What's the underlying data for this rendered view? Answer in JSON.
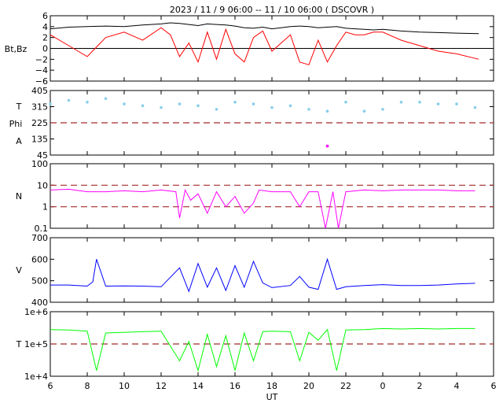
{
  "title": "2023 / 11 /  9   06:00  --  11 / 10   06:00  ( DSCOVR )",
  "xlabel": "UT",
  "x_ticks": [
    "6",
    "8",
    "10",
    "12",
    "14",
    "16",
    "18",
    "20",
    "22",
    "0",
    "2",
    "4",
    "6"
  ],
  "colors": {
    "bt": "#000000",
    "bz": "#ff0000",
    "temperature": "#87ceeb",
    "phi": "#ff00ff",
    "phi_gray": "#b8b8b8",
    "density": "#ff00ff",
    "speed": "#0000ff",
    "temp": "#00ff00",
    "ref_dashed": "#a52a2a"
  },
  "chart_data": [
    {
      "type": "line",
      "panel": "magnetic field",
      "ylabel": "Bt,Bz",
      "ylim": [
        -6,
        6
      ],
      "y_ticks": [
        "6",
        "4",
        "2",
        "0",
        "−2",
        "−4",
        "−6"
      ],
      "x_hours": [
        6,
        7,
        8,
        9,
        10,
        11,
        12,
        12.5,
        13,
        13.5,
        14,
        14.5,
        15,
        15.5,
        16,
        16.5,
        17,
        17.5,
        18,
        18.5,
        19,
        19.5,
        20,
        20.5,
        21,
        21.5,
        22,
        22.5,
        23,
        23.5,
        24,
        25,
        26,
        27,
        28,
        29.2
      ],
      "series": [
        {
          "key": "bt",
          "values": [
            3.6,
            3.9,
            4.0,
            4.1,
            4.0,
            4.3,
            4.5,
            4.7,
            4.6,
            4.4,
            4.2,
            4.5,
            4.4,
            4.3,
            4.1,
            3.8,
            3.7,
            3.9,
            3.6,
            3.8,
            4.0,
            4.1,
            4.0,
            3.8,
            3.9,
            4.0,
            3.7,
            3.6,
            3.5,
            3.4,
            3.5,
            3.2,
            3.0,
            2.9,
            2.8,
            2.7
          ]
        },
        {
          "key": "bz",
          "values": [
            2.5,
            0.5,
            -1.5,
            2.0,
            3.0,
            1.5,
            3.8,
            2.5,
            -1.5,
            1.0,
            -2.5,
            3.0,
            -2.0,
            3.5,
            -1.0,
            -2.5,
            2.0,
            3.2,
            -0.5,
            1.0,
            2.5,
            -2.5,
            -3.0,
            1.5,
            -2.5,
            0.5,
            3.0,
            2.5,
            2.5,
            3.0,
            3.0,
            1.5,
            0.5,
            -0.5,
            -1.0,
            -2.0
          ]
        }
      ]
    },
    {
      "type": "scatter",
      "panel": "temperature/phi",
      "ylabels": [
        "T",
        "Phi",
        "A"
      ],
      "ylim": [
        45,
        405
      ],
      "y_ticks": [
        "405",
        "315",
        "225",
        "135",
        "45"
      ],
      "reference_lines": [
        225
      ],
      "x_hours": [
        6,
        7,
        8,
        9,
        10,
        11,
        12,
        13,
        14,
        15,
        16,
        17,
        18,
        19,
        20,
        21,
        22,
        23,
        24,
        25,
        26,
        27,
        28,
        29
      ],
      "series": [
        {
          "key": "temperature",
          "values": [
            330,
            350,
            340,
            360,
            330,
            320,
            310,
            330,
            320,
            300,
            340,
            330,
            310,
            320,
            300,
            290,
            340,
            290,
            300,
            340,
            340,
            330,
            330,
            310
          ]
        },
        {
          "key": "phi",
          "values": [
            null,
            null,
            null,
            null,
            null,
            null,
            null,
            null,
            null,
            null,
            null,
            null,
            null,
            null,
            null,
            95,
            null,
            null,
            null,
            null,
            null,
            null,
            null,
            null
          ]
        }
      ]
    },
    {
      "type": "line",
      "panel": "density",
      "ylabel": "N",
      "yscale": "log",
      "ylim": [
        0.1,
        100
      ],
      "y_ticks": [
        "100",
        "10",
        "1",
        "0.1"
      ],
      "reference_lines": [
        1,
        10
      ],
      "x_hours": [
        6,
        7,
        8,
        8.5,
        9,
        10,
        11,
        12,
        12.8,
        13,
        13.3,
        13.6,
        14,
        14.5,
        15,
        15.5,
        16,
        16.5,
        17,
        17.3,
        18,
        19,
        19.5,
        20,
        20.5,
        20.9,
        21.3,
        21.6,
        22,
        23,
        24,
        25,
        26,
        27,
        28,
        29
      ],
      "series": [
        {
          "key": "density",
          "values": [
            6,
            6.5,
            5,
            5,
            5,
            5.5,
            5,
            6,
            5,
            0.3,
            6,
            2,
            4,
            0.5,
            5,
            1,
            3,
            0.5,
            1.5,
            6,
            5,
            5,
            1,
            5,
            5,
            0.1,
            5,
            0.1,
            5,
            6,
            5.5,
            6,
            6,
            6,
            5.5,
            5.5
          ]
        }
      ]
    },
    {
      "type": "line",
      "panel": "speed",
      "ylabel": "V",
      "ylim": [
        400,
        700
      ],
      "y_ticks": [
        "700",
        "600",
        "500",
        "400"
      ],
      "x_hours": [
        6,
        7,
        8,
        8.3,
        8.5,
        9,
        10,
        11,
        12,
        13,
        13.5,
        14,
        14.5,
        15,
        15.5,
        16,
        16.5,
        17,
        17.5,
        18,
        19,
        19.5,
        20,
        20.5,
        21,
        21.5,
        22,
        23,
        24,
        25,
        26,
        27,
        28,
        29
      ],
      "series": [
        {
          "key": "speed",
          "values": [
            480,
            480,
            475,
            495,
            600,
            475,
            476,
            475,
            472,
            560,
            450,
            580,
            470,
            560,
            455,
            570,
            470,
            590,
            490,
            468,
            478,
            520,
            470,
            460,
            600,
            460,
            472,
            478,
            482,
            478,
            478,
            480,
            485,
            488
          ]
        }
      ]
    },
    {
      "type": "line",
      "panel": "proton temperature",
      "ylabel": "T",
      "yscale": "log",
      "ylim": [
        10000,
        1000000
      ],
      "y_ticks": [
        "1e+6",
        "1e+5",
        "1e+4"
      ],
      "reference_lines": [
        100000
      ],
      "x_hours": [
        6,
        7,
        8,
        8.5,
        9,
        10,
        11,
        12,
        13,
        13.5,
        14,
        14.5,
        15,
        15.5,
        16,
        16.5,
        17,
        17.5,
        18,
        19,
        19.5,
        20,
        20.5,
        21,
        21.5,
        22,
        23,
        24,
        25,
        26,
        27,
        28,
        29
      ],
      "series": [
        {
          "key": "temp",
          "values": [
            280000,
            270000,
            250000,
            15000,
            220000,
            230000,
            240000,
            250000,
            30000,
            120000,
            15000,
            200000,
            20000,
            180000,
            15000,
            220000,
            30000,
            240000,
            250000,
            240000,
            30000,
            230000,
            130000,
            280000,
            15000,
            270000,
            280000,
            300000,
            290000,
            300000,
            290000,
            300000,
            300000
          ]
        }
      ]
    }
  ]
}
